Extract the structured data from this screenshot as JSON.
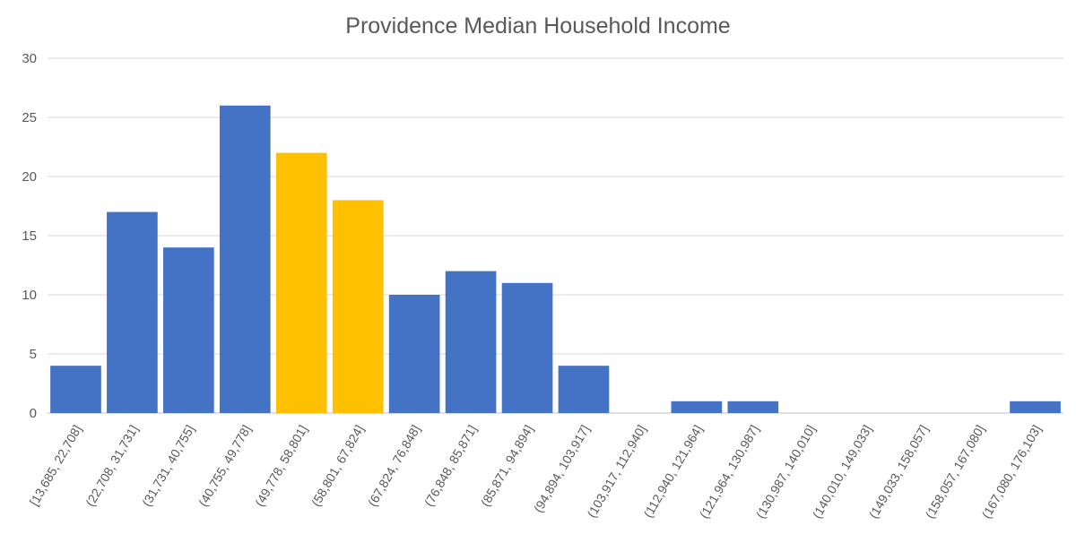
{
  "chart_data": {
    "type": "bar",
    "title": "Providence Median Household Income",
    "xlabel": "",
    "ylabel": "",
    "ylim": [
      0,
      30
    ],
    "yticks": [
      0,
      5,
      10,
      15,
      20,
      25,
      30
    ],
    "grid": true,
    "legend": "none",
    "categories": [
      "[13,685, 22,708]",
      "(22,708, 31,731]",
      "(31,731, 40,755]",
      "(40,755, 49,778]",
      "(49,778, 58,801]",
      "(58,801, 67,824]",
      "(67,824, 76,848]",
      "(76,848, 85,871]",
      "(85,871, 94,894]",
      "(94,894, 103,917]",
      "(103,917, 112,940]",
      "(112,940, 121,964]",
      "(121,964, 130,987]",
      "(130,987, 140,010]",
      "(140,010, 149,033]",
      "(149,033, 158,057]",
      "(158,057, 167,080]",
      "(167,080, 176,103]"
    ],
    "values": [
      4,
      17,
      14,
      26,
      22,
      18,
      10,
      12,
      11,
      4,
      0,
      1,
      1,
      0,
      0,
      0,
      0,
      1
    ],
    "colors": {
      "default": "#4472c4",
      "highlight": "#ffc000"
    },
    "highlighted_indices": [
      4,
      5
    ]
  }
}
